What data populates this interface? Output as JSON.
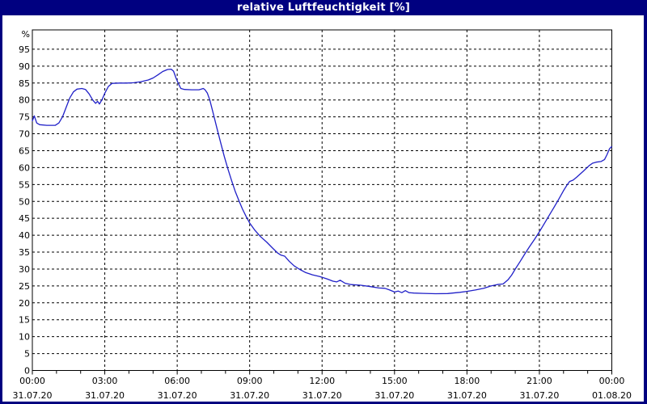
{
  "window": {
    "title": "relative Luftfeuchtigkeit [%]"
  },
  "colors": {
    "titlebar_bg": "#000080",
    "titlebar_text": "#ffffff",
    "frame_border": "#000080",
    "plot_background": "#ffffff",
    "grid": "#000000",
    "axis": "#000000",
    "curve": "#2020c8"
  },
  "chart_data": {
    "type": "line",
    "title": "relative Luftfeuchtigkeit [%]",
    "ylabel_unit": "%",
    "xlim_hours": [
      0,
      24
    ],
    "ylim": [
      0,
      100
    ],
    "grid": "dashed",
    "legend": "none",
    "y_axis": {
      "tick_step": 5,
      "tick_values": [
        0,
        5,
        10,
        15,
        20,
        25,
        30,
        35,
        40,
        45,
        50,
        55,
        60,
        65,
        70,
        75,
        80,
        85,
        90,
        95
      ],
      "unit_label": "%"
    },
    "x_axis": {
      "major_tick_hours": [
        0,
        3,
        6,
        9,
        12,
        15,
        18,
        21,
        24
      ],
      "minor_tick_every_hours": 1,
      "tick_labels": [
        {
          "time": "00:00",
          "date": "31.07.20"
        },
        {
          "time": "03:00",
          "date": "31.07.20"
        },
        {
          "time": "06:00",
          "date": "31.07.20"
        },
        {
          "time": "09:00",
          "date": "31.07.20"
        },
        {
          "time": "12:00",
          "date": "31.07.20"
        },
        {
          "time": "15:00",
          "date": "31.07.20"
        },
        {
          "time": "18:00",
          "date": "31.07.20"
        },
        {
          "time": "21:00",
          "date": "31.07.20"
        },
        {
          "time": "00:00",
          "date": "01.08.20"
        }
      ]
    },
    "series": [
      {
        "name": "relative Luftfeuchtigkeit",
        "color": "#2020c8",
        "points_hour_value": [
          [
            0,
            73.8
          ],
          [
            0.08,
            75.3
          ],
          [
            0.18,
            73.2
          ],
          [
            0.3,
            72.7
          ],
          [
            0.6,
            72.5
          ],
          [
            0.95,
            72.5
          ],
          [
            1.1,
            73.2
          ],
          [
            1.25,
            75.0
          ],
          [
            1.4,
            77.8
          ],
          [
            1.55,
            80.6
          ],
          [
            1.7,
            82.4
          ],
          [
            1.85,
            83.2
          ],
          [
            2.05,
            83.4
          ],
          [
            2.2,
            83.1
          ],
          [
            2.35,
            81.8
          ],
          [
            2.5,
            80.0
          ],
          [
            2.62,
            79.0
          ],
          [
            2.7,
            79.6
          ],
          [
            2.78,
            78.8
          ],
          [
            2.9,
            80.3
          ],
          [
            3.0,
            82.0
          ],
          [
            3.15,
            84.0
          ],
          [
            3.3,
            84.9
          ],
          [
            3.6,
            85.0
          ],
          [
            3.9,
            85.0
          ],
          [
            4.2,
            85.1
          ],
          [
            4.5,
            85.4
          ],
          [
            4.8,
            85.9
          ],
          [
            5.0,
            86.5
          ],
          [
            5.2,
            87.4
          ],
          [
            5.4,
            88.4
          ],
          [
            5.6,
            89.0
          ],
          [
            5.75,
            89.1
          ],
          [
            5.85,
            88.5
          ],
          [
            5.95,
            86.5
          ],
          [
            6.05,
            84.8
          ],
          [
            6.15,
            83.4
          ],
          [
            6.3,
            83.1
          ],
          [
            6.6,
            83.0
          ],
          [
            6.9,
            83.0
          ],
          [
            7.0,
            83.2
          ],
          [
            7.08,
            83.4
          ],
          [
            7.15,
            83.0
          ],
          [
            7.25,
            82.0
          ],
          [
            7.35,
            80.0
          ],
          [
            7.5,
            75.8
          ],
          [
            7.65,
            71.5
          ],
          [
            7.8,
            67.3
          ],
          [
            7.95,
            63.3
          ],
          [
            8.1,
            59.6
          ],
          [
            8.25,
            56.2
          ],
          [
            8.4,
            53.0
          ],
          [
            8.55,
            50.3
          ],
          [
            8.7,
            47.8
          ],
          [
            8.85,
            45.6
          ],
          [
            9.0,
            43.6
          ],
          [
            9.2,
            41.6
          ],
          [
            9.45,
            39.6
          ],
          [
            9.7,
            38.0
          ],
          [
            9.95,
            36.2
          ],
          [
            10.15,
            34.8
          ],
          [
            10.3,
            34.1
          ],
          [
            10.45,
            33.8
          ],
          [
            10.65,
            32.2
          ],
          [
            10.85,
            30.9
          ],
          [
            11.05,
            30.0
          ],
          [
            11.3,
            29.0
          ],
          [
            11.6,
            28.3
          ],
          [
            11.9,
            27.8
          ],
          [
            12.2,
            27.1
          ],
          [
            12.45,
            26.4
          ],
          [
            12.6,
            26.2
          ],
          [
            12.75,
            26.7
          ],
          [
            12.95,
            25.8
          ],
          [
            13.2,
            25.4
          ],
          [
            13.6,
            25.2
          ],
          [
            14.0,
            24.8
          ],
          [
            14.35,
            24.4
          ],
          [
            14.6,
            24.3
          ],
          [
            14.8,
            23.8
          ],
          [
            15.0,
            23.2
          ],
          [
            15.15,
            23.5
          ],
          [
            15.3,
            23.0
          ],
          [
            15.45,
            23.6
          ],
          [
            15.6,
            23.0
          ],
          [
            15.8,
            22.9
          ],
          [
            16.2,
            22.8
          ],
          [
            16.7,
            22.7
          ],
          [
            17.2,
            22.75
          ],
          [
            17.7,
            23.1
          ],
          [
            18.0,
            23.4
          ],
          [
            18.35,
            23.8
          ],
          [
            18.7,
            24.3
          ],
          [
            19.0,
            25.0
          ],
          [
            19.25,
            25.4
          ],
          [
            19.5,
            25.6
          ],
          [
            19.7,
            26.8
          ],
          [
            19.85,
            28.2
          ],
          [
            20.0,
            30.0
          ],
          [
            20.2,
            32.2
          ],
          [
            20.4,
            34.5
          ],
          [
            20.6,
            36.7
          ],
          [
            20.8,
            38.8
          ],
          [
            21.0,
            41.0
          ],
          [
            21.2,
            43.4
          ],
          [
            21.4,
            45.8
          ],
          [
            21.6,
            48.2
          ],
          [
            21.8,
            50.6
          ],
          [
            22.0,
            53.2
          ],
          [
            22.15,
            54.9
          ],
          [
            22.25,
            55.9
          ],
          [
            22.4,
            56.3
          ],
          [
            22.55,
            57.2
          ],
          [
            22.8,
            58.8
          ],
          [
            23.05,
            60.5
          ],
          [
            23.2,
            61.3
          ],
          [
            23.35,
            61.6
          ],
          [
            23.55,
            61.8
          ],
          [
            23.7,
            62.4
          ],
          [
            23.8,
            63.8
          ],
          [
            23.9,
            65.5
          ],
          [
            23.97,
            66.1
          ],
          [
            24.0,
            66.1
          ]
        ]
      }
    ]
  }
}
